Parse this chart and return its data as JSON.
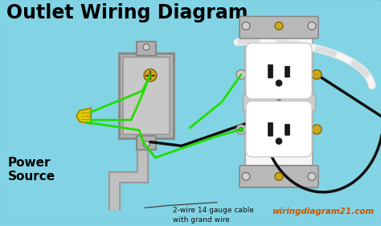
{
  "bg_color": "#82d4e4",
  "title": "Outlet Wiring Diagram",
  "title_fontsize": 17,
  "title_color": "#000000",
  "title_weight": "bold",
  "power_source_label": "Power\nSource",
  "cable_label": "2-wire 14 gauge cable\nwith grand wire",
  "website_label": "wiringdiagram21.com",
  "wire_green_color": "#22dd00",
  "wire_black_color": "#111111",
  "wire_white_color": "#e0e0e0",
  "box_gray": "#b0b0b0",
  "box_dark": "#888888",
  "outlet_white": "#f5f5f5",
  "screw_brass": "#c8a820",
  "nut_yellow": "#ddcc00"
}
